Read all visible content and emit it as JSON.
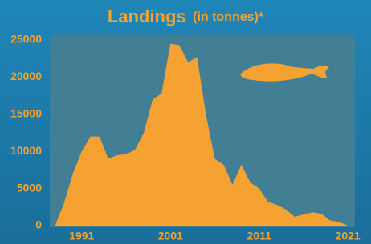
{
  "chart_data": {
    "type": "area",
    "title": "Landings",
    "subtitle": "(in tonnes)*",
    "x": [
      1988,
      1989,
      1990,
      1991,
      1992,
      1993,
      1994,
      1995,
      1996,
      1997,
      1998,
      1999,
      2000,
      2001,
      2002,
      2003,
      2004,
      2005,
      2006,
      2007,
      2008,
      2009,
      2010,
      2011,
      2012,
      2013,
      2014,
      2015,
      2016,
      2017,
      2018,
      2019,
      2020,
      2021
    ],
    "values": [
      0,
      3000,
      7000,
      10000,
      12000,
      12000,
      9000,
      9500,
      9600,
      10200,
      12500,
      17000,
      17800,
      24500,
      24300,
      22000,
      22700,
      15000,
      9000,
      8200,
      5500,
      8200,
      5800,
      5000,
      3200,
      2800,
      2200,
      1200,
      1500,
      1800,
      1600,
      700,
      500,
      0
    ],
    "color": "#f5a232",
    "xlim": [
      1987.4,
      2021.8
    ],
    "xticks": [
      1991,
      2001,
      2011,
      2021
    ],
    "ylim": [
      0,
      25000
    ],
    "yticks": [
      0,
      5000,
      10000,
      15000,
      20000,
      25000
    ]
  }
}
